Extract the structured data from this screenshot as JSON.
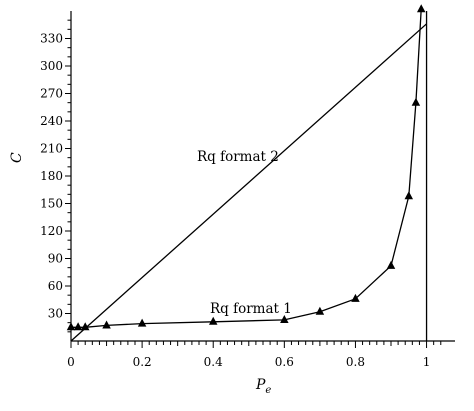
{
  "chart_data": {
    "type": "line",
    "title": "",
    "xlabel": "P",
    "xlabel_sub": "e",
    "ylabel": "C",
    "xlim": [
      0,
      1.08
    ],
    "ylim": [
      0,
      360
    ],
    "x_ticks": [
      0,
      0.2,
      0.4,
      0.6,
      0.8,
      1
    ],
    "x_tick_labels": [
      "0",
      "0.2",
      "0.4",
      "0.6",
      "0.8",
      "1"
    ],
    "y_ticks": [
      30,
      60,
      90,
      120,
      150,
      180,
      210,
      240,
      270,
      300,
      330
    ],
    "y_tick_labels": [
      "30",
      "60",
      "90",
      "120",
      "150",
      "180",
      "210",
      "240",
      "270",
      "300",
      "330"
    ],
    "grid": false,
    "series": [
      {
        "name": "Rq format 1",
        "marker": "triangle",
        "x": [
          0,
          0.02,
          0.04,
          0.1,
          0.2,
          0.4,
          0.6,
          0.7,
          0.8,
          0.9,
          0.95,
          0.97,
          0.985
        ],
        "y": [
          15,
          15,
          15,
          17,
          19,
          21,
          23,
          32,
          46,
          82,
          158,
          260,
          362
        ]
      },
      {
        "name": "Rq format 2",
        "marker": "none",
        "x": [
          0,
          1
        ],
        "y": [
          0,
          346
        ]
      }
    ],
    "vertical_lines": [
      1
    ],
    "annotations": [
      "Rq format 2",
      "Rq format 1"
    ]
  }
}
